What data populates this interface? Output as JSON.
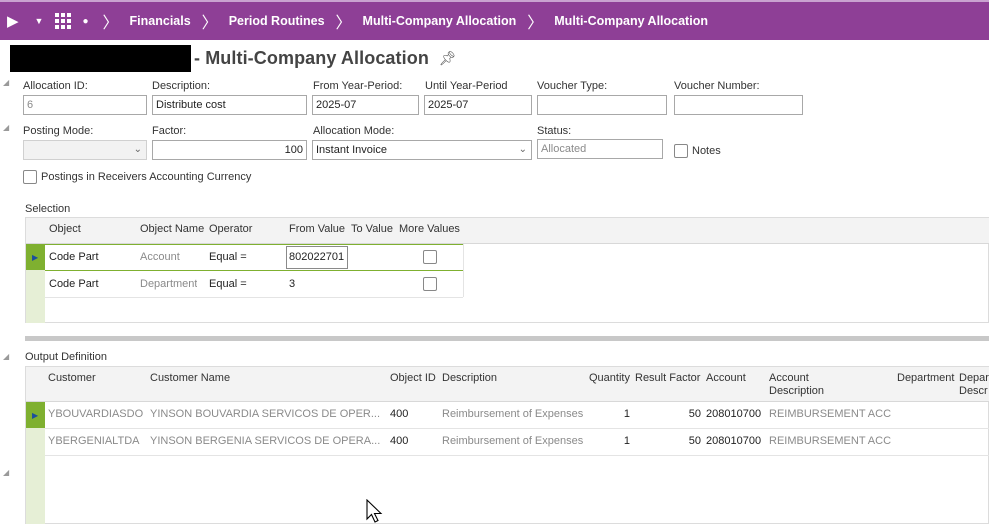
{
  "nav": {
    "breadcrumbs": [
      "Financials",
      "Period Routines",
      "Multi-Company Allocation",
      "Multi-Company Allocation"
    ]
  },
  "page": {
    "title": "- Multi-Company Allocation"
  },
  "form": {
    "allocation_id": {
      "label": "Allocation ID:",
      "value": "6"
    },
    "description": {
      "label": "Description:",
      "value": "Distribute cost"
    },
    "from_year_period": {
      "label": "From Year-Period:",
      "value": "2025-07"
    },
    "until_year_period": {
      "label": "Until Year-Period",
      "value": "2025-07"
    },
    "voucher_type": {
      "label": "Voucher Type:",
      "value": ""
    },
    "voucher_number": {
      "label": "Voucher Number:",
      "value": ""
    },
    "posting_mode": {
      "label": "Posting Mode:",
      "value": ""
    },
    "factor": {
      "label": "Factor:",
      "value": "100"
    },
    "allocation_mode": {
      "label": "Allocation Mode:",
      "value": "Instant Invoice"
    },
    "status": {
      "label": "Status:",
      "value": "Allocated"
    },
    "notes_label": "Notes",
    "receivers_currency_label": "Postings in Receivers Accounting Currency"
  },
  "selection": {
    "title": "Selection",
    "columns": [
      "Object",
      "Object Name",
      "Operator",
      "From Value",
      "To Value",
      "More Values"
    ],
    "rows": [
      {
        "object": "Code Part",
        "object_name": "Account",
        "operator": "Equal =",
        "from_value": "802022701",
        "to_value": ""
      },
      {
        "object": "Code Part",
        "object_name": "Department",
        "operator": "Equal =",
        "from_value": "3",
        "to_value": ""
      }
    ]
  },
  "output": {
    "title": "Output Definition",
    "columns": {
      "customer": "Customer",
      "customer_name": "Customer Name",
      "object_id": "Object ID",
      "description": "Description",
      "quantity": "Quantity",
      "result_factor": "Result Factor",
      "account": "Account",
      "account_description_1": "Account",
      "account_description_2": "Description",
      "department": "Department",
      "department_description_1": "Depar",
      "department_description_2": "Descr"
    },
    "rows": [
      {
        "customer": "YBOUVARDIASDO",
        "customer_name": "YINSON BOUVARDIA SERVICOS DE OPER...",
        "object_id": "400",
        "description": "Reimbursement of Expenses",
        "quantity": "1",
        "result_factor": "50",
        "account": "208010700",
        "account_description": "REIMBURSEMENT ACC"
      },
      {
        "customer": "YBERGENIALTDA",
        "customer_name": "YINSON BERGENIA SERVICOS DE OPERA...",
        "object_id": "400",
        "description": "Reimbursement of Expenses",
        "quantity": "1",
        "result_factor": "50",
        "account": "208010700",
        "account_description": "REIMBURSEMENT ACC"
      }
    ]
  }
}
